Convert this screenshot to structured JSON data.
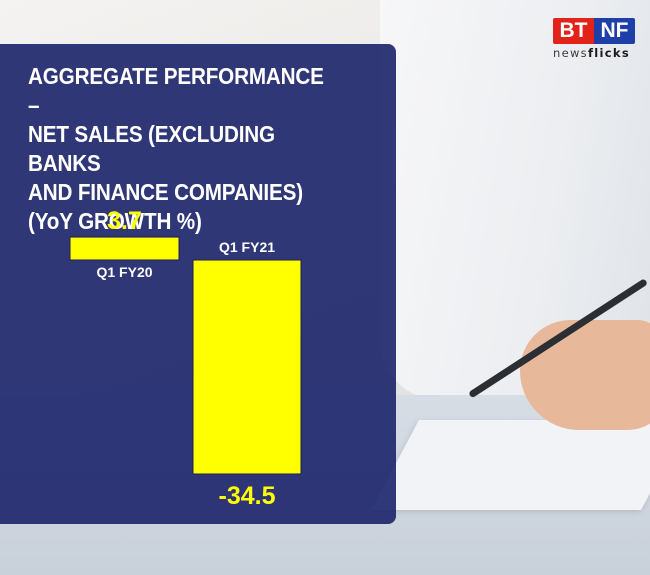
{
  "logo": {
    "mark_left": "BT",
    "mark_right": "NF",
    "sub_light": "news",
    "sub_bold": "flicks"
  },
  "chart_data": {
    "type": "bar",
    "title": "AGGREGATE PERFORMANCE –\nNET SALES (EXCLUDING BANKS\nAND FINANCE COMPANIES)\n(YoY GROWTH %)",
    "categories": [
      "Q1 FY20",
      "Q1 FY21"
    ],
    "values": [
      3.7,
      -34.5
    ],
    "value_labels": [
      "3.7",
      "-34.5"
    ],
    "colors": {
      "bar": "#ffff00",
      "panel": "#20296e",
      "text": "#ffffff"
    },
    "xlabel": "",
    "ylabel": "",
    "grid": false,
    "legend": "none"
  }
}
